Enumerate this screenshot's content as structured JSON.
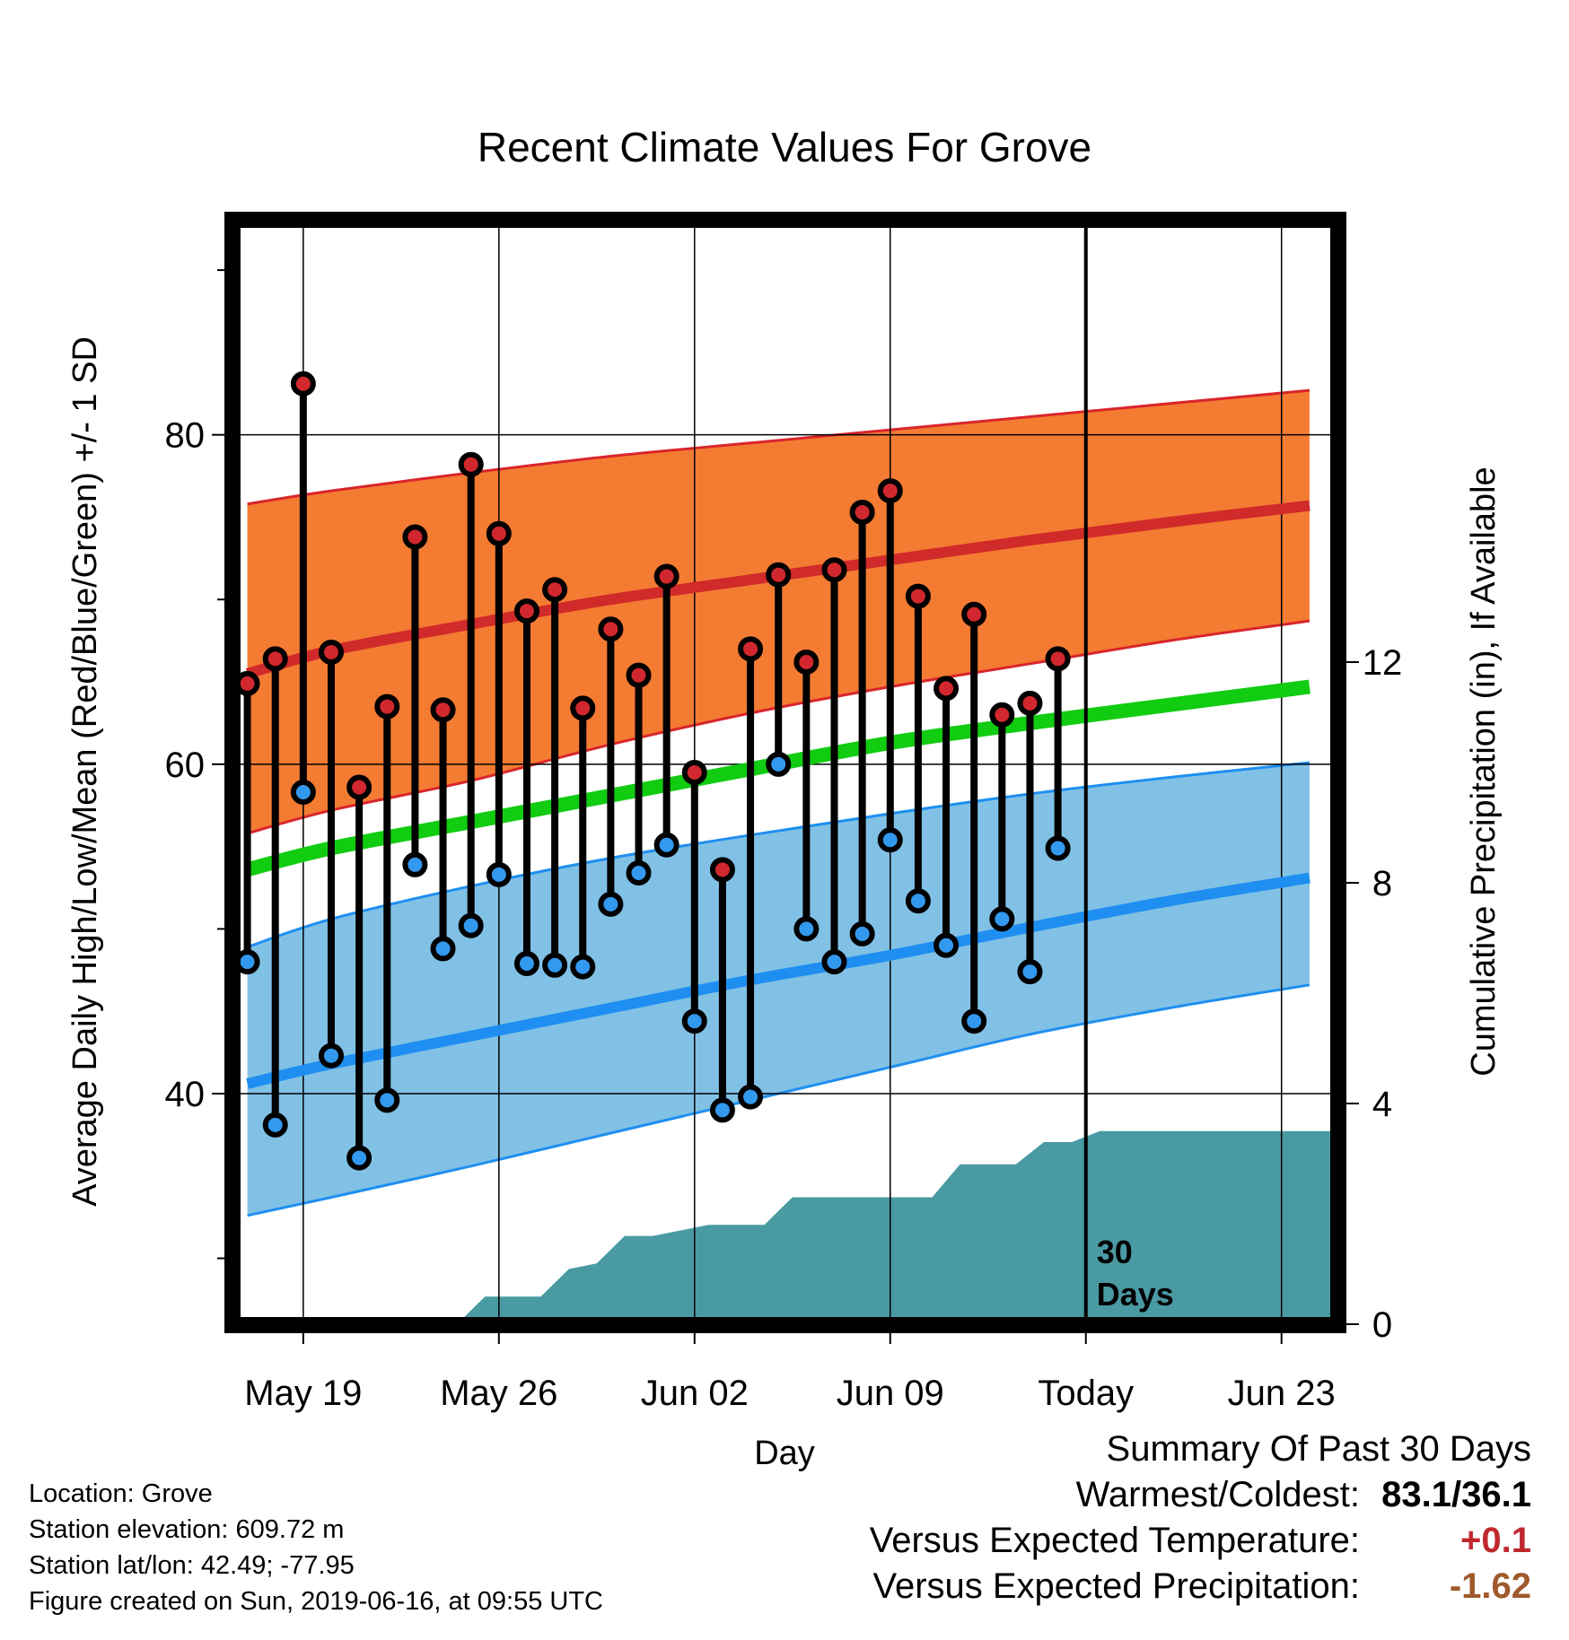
{
  "chart_data": {
    "type": "line",
    "title": "Recent Climate Values For Grove",
    "xlabel": "Day",
    "ylabel_left": "Average Daily High/Low/Mean (Red/Blue/Green) +/- 1 SD",
    "ylabel_right": "Cumulative Precipitation (in), If Available",
    "x_tick_labels": [
      "May 19",
      "May 26",
      "Jun 02",
      "Jun 09",
      "Today",
      "Jun 23"
    ],
    "x_tick_days": [
      2,
      9,
      16,
      23,
      30,
      37
    ],
    "xlim_days": [
      -0.5,
      39.0
    ],
    "x_day_zero": "May 17",
    "ylim": [
      26,
      93
    ],
    "y_ticks": [
      40,
      60,
      80
    ],
    "y_minor_ticks": [
      30,
      50,
      70,
      90
    ],
    "y2lim": [
      0,
      20
    ],
    "y2_ticks": [
      0,
      4,
      8,
      12
    ],
    "today_day": 30,
    "today_annotation": [
      "30",
      "Days"
    ],
    "grid": true,
    "colors": {
      "high_band": "#f47b32",
      "high_edge": "#d9252b",
      "high_mean": "#d02a2a",
      "low_band": "#82c1e6",
      "low_edge": "#1e8ff0",
      "low_mean": "#1e8ff0",
      "mean_line": "#11cc11",
      "precip": "#4a9aa3",
      "high_dot": "#d0282e",
      "low_dot": "#3399ee"
    },
    "normals": {
      "x": [
        0,
        3,
        8,
        13,
        18,
        23,
        28,
        33,
        38
      ],
      "high_mean": [
        65.5,
        66.9,
        68.5,
        70.0,
        71.2,
        72.4,
        73.6,
        74.7,
        75.7
      ],
      "high_upper": [
        75.8,
        76.6,
        77.7,
        78.7,
        79.5,
        80.3,
        81.1,
        81.9,
        82.7
      ],
      "high_lower": [
        55.8,
        57.2,
        59.0,
        61.2,
        63.1,
        64.7,
        66.1,
        67.5,
        68.7
      ],
      "mean_line": [
        53.6,
        54.9,
        56.5,
        58.1,
        59.7,
        61.3,
        62.5,
        63.6,
        64.7
      ],
      "low_mean": [
        40.6,
        41.8,
        43.5,
        45.2,
        46.9,
        48.4,
        50.1,
        51.7,
        53.1
      ],
      "low_upper": [
        48.9,
        50.6,
        52.6,
        54.3,
        55.7,
        57.0,
        58.2,
        59.2,
        60.1
      ],
      "low_lower": [
        32.6,
        33.7,
        35.6,
        37.6,
        39.6,
        41.6,
        43.6,
        45.2,
        46.6
      ]
    },
    "series": [
      {
        "name": "High",
        "values": [
          64.9,
          66.4,
          83.1,
          66.8,
          58.6,
          63.5,
          73.8,
          63.3,
          78.2,
          74.0,
          69.3,
          70.6,
          63.4,
          68.2,
          65.4,
          71.4,
          59.5,
          53.6,
          67.0,
          71.5,
          66.2,
          71.8,
          75.3,
          76.6,
          70.2,
          64.6,
          69.1,
          63.0,
          63.7,
          66.4
        ]
      },
      {
        "name": "Low",
        "values": [
          48.0,
          38.1,
          58.3,
          42.3,
          36.1,
          39.6,
          53.9,
          48.8,
          50.2,
          53.3,
          47.9,
          47.8,
          47.7,
          51.5,
          53.4,
          55.1,
          44.4,
          39.0,
          39.8,
          60.0,
          50.0,
          48.0,
          49.7,
          55.4,
          51.7,
          49.0,
          44.4,
          50.6,
          47.4,
          54.9
        ]
      }
    ],
    "days": [
      0,
      1,
      2,
      3,
      4,
      5,
      6,
      7,
      8,
      9,
      10,
      11,
      12,
      13,
      14,
      15,
      16,
      17,
      18,
      19,
      20,
      21,
      22,
      23,
      24,
      25,
      26,
      27,
      28,
      29
    ],
    "precip_cumulative": {
      "x": [
        7.5,
        8.5,
        10.5,
        11.5,
        12.5,
        13.5,
        14.5,
        15.5,
        16.5,
        17.5,
        18.5,
        19.5,
        20.5,
        21.5,
        22.5,
        23.5,
        24.5,
        25.5,
        26.5,
        27.5,
        28.5,
        29.5,
        30.5,
        39.0
      ],
      "y": [
        0.0,
        0.5,
        0.5,
        1.0,
        1.1,
        1.6,
        1.6,
        1.7,
        1.8,
        1.8,
        1.8,
        2.3,
        2.3,
        2.3,
        2.3,
        2.3,
        2.3,
        2.9,
        2.9,
        2.9,
        3.3,
        3.3,
        3.5,
        3.5
      ]
    }
  },
  "info": {
    "location": "Location: Grove",
    "elevation": "Station elevation: 609.72 m",
    "latlon": "Station lat/lon: 42.49; -77.95",
    "created": "Figure created on Sun, 2019-06-16, at 09:55 UTC"
  },
  "summary": {
    "heading": "Summary Of Past 30 Days",
    "warm_cold_label": "Warmest/Coldest:",
    "warm_cold_value": "83.1/36.1",
    "temp_label": "Versus Expected Temperature:",
    "temp_value": "+0.1",
    "temp_color": "#c0282e",
    "precip_label": "Versus Expected Precipitation:",
    "precip_value": "-1.62",
    "precip_color": "#a05a2c"
  }
}
